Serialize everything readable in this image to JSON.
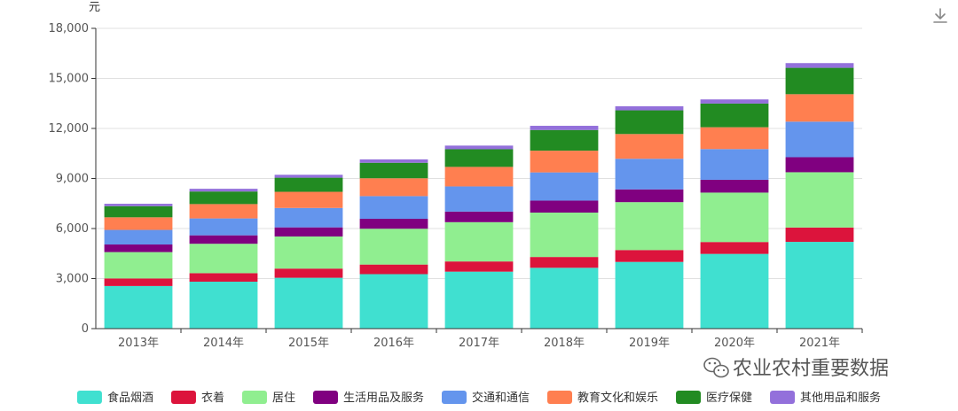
{
  "toolbar": {
    "download_icon": "download-icon"
  },
  "watermark": {
    "text": "农业农村重要数据",
    "icon": "wechat-icon"
  },
  "chart_data": {
    "type": "bar",
    "stacked": true,
    "unit_label": "元",
    "ylim": [
      0,
      18000
    ],
    "yticks": [
      0,
      3000,
      6000,
      9000,
      12000,
      15000,
      18000
    ],
    "ytick_labels": [
      "0",
      "3,000",
      "6,000",
      "9,000",
      "12,000",
      "15,000",
      "18,000"
    ],
    "grid": true,
    "legend_position": "bottom",
    "categories": [
      "2013年",
      "2014年",
      "2015年",
      "2016年",
      "2017年",
      "2018年",
      "2019年",
      "2020年",
      "2021年"
    ],
    "series": [
      {
        "name": "食品烟酒",
        "color": "#40E0D0",
        "values": [
          2554,
          2814,
          3048,
          3266,
          3415,
          3646,
          3998,
          4479,
          5200
        ]
      },
      {
        "name": "衣着",
        "color": "#DC143C",
        "values": [
          454,
          510,
          550,
          575,
          612,
          648,
          713,
          713,
          860
        ]
      },
      {
        "name": "居住",
        "color": "#90EE90",
        "values": [
          1580,
          1763,
          1926,
          2147,
          2354,
          2661,
          2871,
          2962,
          3315
        ]
      },
      {
        "name": "生活用品及服务",
        "color": "#800080",
        "values": [
          455,
          506,
          546,
          596,
          634,
          720,
          764,
          768,
          900
        ]
      },
      {
        "name": "交通和通信",
        "color": "#6495ED",
        "values": [
          875,
          1013,
          1163,
          1360,
          1509,
          1690,
          1837,
          1841,
          2132
        ]
      },
      {
        "name": "教育文化和娱乐",
        "color": "#FF7F50",
        "values": [
          755,
          860,
          969,
          1070,
          1171,
          1302,
          1482,
          1309,
          1646
        ]
      },
      {
        "name": "医疗保健",
        "color": "#228B22",
        "values": [
          668,
          754,
          846,
          929,
          1059,
          1240,
          1421,
          1418,
          1580
        ]
      },
      {
        "name": "其他用品和服务",
        "color": "#9370DB",
        "values": [
          144,
          163,
          174,
          201,
          218,
          251,
          241,
          250,
          284
        ]
      }
    ]
  }
}
